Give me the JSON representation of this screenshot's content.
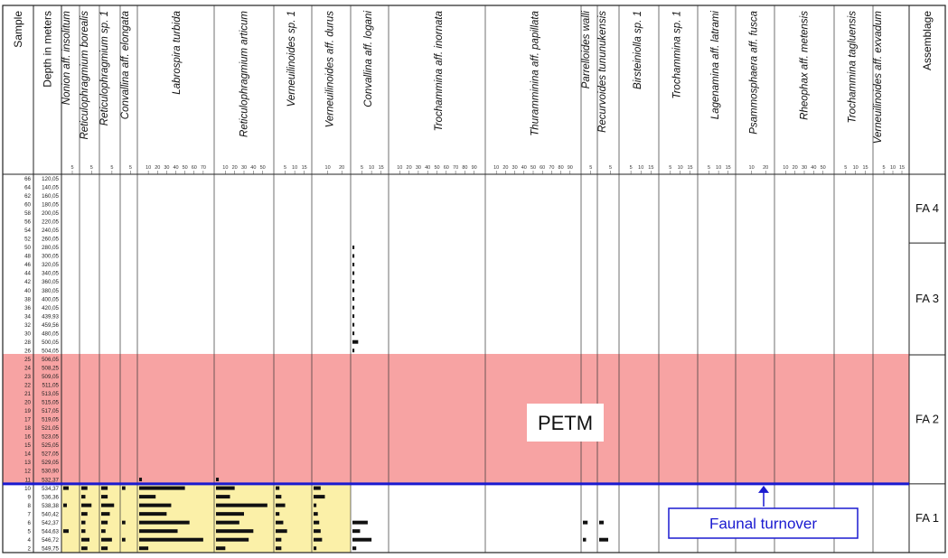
{
  "chart_data": {
    "type": "bar",
    "orientation": "horizontal",
    "grid": false,
    "headers": {
      "sample": "Sample",
      "depth": "Depth in meters",
      "assemblage": "Assemblage"
    },
    "samples": [
      "66",
      "64",
      "62",
      "60",
      "58",
      "56",
      "54",
      "52",
      "50",
      "48",
      "46",
      "44",
      "42",
      "40",
      "38",
      "36",
      "34",
      "32",
      "30",
      "28",
      "26",
      "25",
      "24",
      "23",
      "22",
      "21",
      "20",
      "19",
      "17",
      "18",
      "16",
      "15",
      "14",
      "13",
      "12",
      "11",
      "10",
      "9",
      "8",
      "7",
      "6",
      "5",
      "4",
      "2"
    ],
    "depths": [
      "120,05",
      "140,05",
      "160,05",
      "180,05",
      "200,05",
      "220,05",
      "240,05",
      "260,05",
      "280,05",
      "300,05",
      "320,05",
      "340,05",
      "360,05",
      "380,05",
      "400,05",
      "420,05",
      "439,93",
      "459,56",
      "480,05",
      "500,05",
      "504,05",
      "506,05",
      "508,25",
      "509,05",
      "511,05",
      "513,05",
      "515,05",
      "517,05",
      "519,05",
      "521,05",
      "523,05",
      "525,05",
      "527,05",
      "529,05",
      "530,90",
      "532,37",
      "534,37",
      "536,36",
      "538,38",
      "540,42",
      "542,37",
      "544,63",
      "546,72",
      "549,75"
    ],
    "taxa": [
      {
        "name": "Nonion aff. insolitum",
        "ticks": [
          "5"
        ],
        "max": 8,
        "values": [
          0,
          0,
          0,
          0,
          0,
          0,
          0,
          0,
          0,
          0,
          0,
          0,
          0,
          0,
          0,
          0,
          0,
          0,
          0,
          0,
          0,
          0,
          0,
          0,
          0,
          0,
          0,
          0,
          0,
          0,
          0,
          0,
          0,
          0,
          0,
          0,
          3,
          0,
          2,
          0,
          0,
          3,
          0,
          0
        ]
      },
      {
        "name": "Reticulophragmium borealis",
        "ticks": [
          "5"
        ],
        "max": 8,
        "values": [
          0,
          0,
          0,
          0,
          0,
          0,
          0,
          0,
          0,
          0,
          0,
          0,
          0,
          0,
          0,
          0,
          0,
          0,
          0,
          0,
          0,
          0,
          0,
          0,
          0,
          0,
          0,
          0,
          0,
          0,
          0,
          0,
          0,
          0,
          0,
          0,
          3,
          2,
          5,
          3,
          2,
          2,
          4,
          3
        ]
      },
      {
        "name": "Reticulophragmium sp. 1",
        "ticks": [
          "5"
        ],
        "max": 8,
        "values": [
          0,
          0,
          0,
          0,
          0,
          0,
          0,
          0,
          0,
          0,
          0,
          0,
          0,
          0,
          0,
          0,
          0,
          0,
          0,
          0,
          0,
          0,
          0,
          0,
          0,
          0,
          0,
          0,
          0,
          0,
          0,
          0,
          0,
          0,
          0,
          0,
          3,
          3,
          6,
          4,
          3,
          2,
          5,
          3
        ]
      },
      {
        "name": "Convallina aff. elongata",
        "ticks": [
          "5"
        ],
        "max": 8,
        "values": [
          0,
          0,
          0,
          0,
          0,
          0,
          0,
          0,
          0,
          0,
          0,
          0,
          0,
          0,
          0,
          0,
          0,
          0,
          0,
          0,
          0,
          0,
          0,
          0,
          0,
          0,
          0,
          0,
          0,
          0,
          0,
          0,
          0,
          0,
          0,
          0,
          2,
          0,
          0,
          0,
          2,
          0,
          2,
          0
        ]
      },
      {
        "name": "Labrospira turbida",
        "ticks": [
          "10",
          "20",
          "30",
          "40",
          "50",
          "60",
          "70"
        ],
        "max": 80,
        "values": [
          0,
          0,
          0,
          0,
          0,
          0,
          0,
          0,
          0,
          0,
          0,
          0,
          0,
          0,
          0,
          0,
          0,
          0,
          0,
          0,
          0,
          0,
          0,
          0,
          0,
          0,
          0,
          0,
          0,
          0,
          0,
          0,
          0,
          0,
          0,
          3,
          50,
          18,
          35,
          30,
          55,
          42,
          70,
          10
        ]
      },
      {
        "name": "Reticulophragmium articum",
        "ticks": [
          "10",
          "20",
          "30",
          "40",
          "50"
        ],
        "max": 60,
        "values": [
          0,
          0,
          0,
          0,
          0,
          0,
          0,
          0,
          0,
          0,
          0,
          0,
          0,
          0,
          0,
          0,
          0,
          0,
          0,
          0,
          0,
          0,
          0,
          0,
          0,
          0,
          0,
          0,
          0,
          0,
          0,
          0,
          0,
          0,
          0,
          3,
          20,
          15,
          55,
          30,
          25,
          40,
          35,
          10
        ]
      },
      {
        "name": "Verneuilinoides sp. 1",
        "ticks": [
          "5",
          "10",
          "15"
        ],
        "max": 18,
        "values": [
          0,
          0,
          0,
          0,
          0,
          0,
          0,
          0,
          0,
          0,
          0,
          0,
          0,
          0,
          0,
          0,
          0,
          0,
          0,
          0,
          0,
          0,
          0,
          0,
          0,
          0,
          0,
          0,
          0,
          0,
          0,
          0,
          0,
          0,
          0,
          0,
          2,
          3,
          5,
          2,
          4,
          6,
          3,
          3
        ]
      },
      {
        "name": "Verneuilinoides aff. durus",
        "ticks": [
          "10",
          "20"
        ],
        "max": 25,
        "values": [
          0,
          0,
          0,
          0,
          0,
          0,
          0,
          0,
          0,
          0,
          0,
          0,
          0,
          0,
          0,
          0,
          0,
          0,
          0,
          0,
          0,
          0,
          0,
          0,
          0,
          0,
          0,
          0,
          0,
          0,
          0,
          0,
          0,
          0,
          0,
          0,
          5,
          8,
          2,
          3,
          4,
          5,
          6,
          2
        ]
      },
      {
        "name": "Convallina aff. logani",
        "ticks": [
          "5",
          "10",
          "15"
        ],
        "max": 18,
        "values": [
          0,
          0,
          0,
          0,
          0,
          0,
          0,
          0,
          1,
          1,
          1,
          1,
          1,
          1,
          1,
          1,
          1,
          1,
          1,
          3,
          1,
          0,
          0,
          0,
          0,
          0,
          0,
          0,
          0,
          0,
          0,
          0,
          0,
          0,
          0,
          0,
          0,
          0,
          0,
          0,
          8,
          4,
          10,
          2
        ]
      },
      {
        "name": "Trochammina aff. inornata",
        "ticks": [
          "10",
          "20",
          "30",
          "40",
          "50",
          "60",
          "70",
          "80",
          "90"
        ],
        "max": 100,
        "values": [
          0,
          0,
          0,
          0,
          0,
          0,
          0,
          0,
          0,
          0,
          0,
          0,
          0,
          0,
          0,
          0,
          0,
          0,
          0,
          0,
          0,
          0,
          0,
          0,
          0,
          0,
          0,
          0,
          0,
          0,
          0,
          0,
          0,
          0,
          0,
          0,
          0,
          0,
          0,
          0,
          0,
          0,
          0,
          0
        ]
      },
      {
        "name": "Thuramminina aff. papillata",
        "ticks": [
          "10",
          "20",
          "30",
          "40",
          "50",
          "60",
          "70",
          "80",
          "90"
        ],
        "max": 100,
        "values": [
          0,
          0,
          0,
          0,
          0,
          0,
          0,
          0,
          0,
          0,
          0,
          0,
          0,
          0,
          0,
          0,
          0,
          0,
          0,
          0,
          0,
          0,
          0,
          0,
          0,
          0,
          0,
          0,
          0,
          0,
          0,
          0,
          0,
          0,
          0,
          0,
          0,
          0,
          0,
          0,
          0,
          0,
          0,
          0
        ]
      },
      {
        "name": "Parrelloides walli",
        "ticks": [
          "5"
        ],
        "max": 8,
        "values": [
          0,
          0,
          0,
          0,
          0,
          0,
          0,
          0,
          0,
          0,
          0,
          0,
          0,
          0,
          0,
          0,
          0,
          0,
          0,
          0,
          0,
          0,
          0,
          0,
          0,
          0,
          0,
          0,
          0,
          0,
          0,
          0,
          0,
          0,
          0,
          0,
          0,
          0,
          0,
          0,
          3,
          0,
          2,
          0
        ]
      },
      {
        "name": "Recurvoides tununukensis",
        "ticks": [
          "5"
        ],
        "max": 8,
        "values": [
          0,
          0,
          0,
          0,
          0,
          0,
          0,
          0,
          0,
          0,
          0,
          0,
          0,
          0,
          0,
          0,
          0,
          0,
          0,
          0,
          0,
          0,
          0,
          0,
          0,
          0,
          0,
          0,
          0,
          0,
          0,
          0,
          0,
          0,
          0,
          0,
          0,
          0,
          0,
          0,
          2,
          0,
          4,
          0
        ]
      },
      {
        "name": "Birsteiniolla sp. 1",
        "ticks": [
          "5",
          "10",
          "15"
        ],
        "max": 18,
        "values": [
          0,
          0,
          0,
          0,
          0,
          0,
          0,
          0,
          0,
          0,
          0,
          0,
          0,
          0,
          0,
          0,
          0,
          0,
          0,
          0,
          0,
          0,
          0,
          0,
          0,
          0,
          0,
          0,
          0,
          0,
          0,
          0,
          0,
          0,
          0,
          0,
          0,
          0,
          0,
          0,
          0,
          0,
          0,
          0
        ]
      },
      {
        "name": "Trochammina sp. 1",
        "ticks": [
          "5",
          "10",
          "15"
        ],
        "max": 18,
        "values": [
          0,
          0,
          0,
          0,
          0,
          0,
          0,
          0,
          0,
          0,
          0,
          0,
          0,
          0,
          0,
          0,
          0,
          0,
          0,
          0,
          0,
          0,
          0,
          0,
          0,
          0,
          0,
          0,
          0,
          0,
          0,
          0,
          0,
          0,
          0,
          0,
          0,
          0,
          0,
          0,
          0,
          0,
          0,
          0
        ]
      },
      {
        "name": "Lagenamina aff. latrami",
        "ticks": [
          "5",
          "10",
          "15"
        ],
        "max": 18,
        "values": [
          0,
          0,
          0,
          0,
          0,
          0,
          0,
          0,
          0,
          0,
          0,
          0,
          0,
          0,
          0,
          0,
          0,
          0,
          0,
          0,
          0,
          0,
          0,
          0,
          0,
          0,
          0,
          0,
          0,
          0,
          0,
          0,
          0,
          0,
          0,
          0,
          0,
          0,
          0,
          0,
          0,
          0,
          0,
          0
        ]
      },
      {
        "name": "Psammosphaera aff. fusca",
        "ticks": [
          "10",
          "20"
        ],
        "max": 25,
        "values": [
          0,
          0,
          0,
          0,
          0,
          0,
          0,
          0,
          0,
          0,
          0,
          0,
          0,
          0,
          0,
          0,
          0,
          0,
          0,
          0,
          0,
          0,
          0,
          0,
          0,
          0,
          0,
          0,
          0,
          0,
          0,
          0,
          0,
          0,
          0,
          0,
          0,
          0,
          0,
          0,
          0,
          0,
          0,
          0
        ]
      },
      {
        "name": "Rheophax aff. metensis",
        "ticks": [
          "10",
          "20",
          "30",
          "40",
          "50"
        ],
        "max": 60,
        "values": [
          0,
          0,
          0,
          0,
          0,
          0,
          0,
          0,
          0,
          0,
          0,
          0,
          0,
          0,
          0,
          0,
          0,
          0,
          0,
          0,
          0,
          0,
          0,
          0,
          0,
          0,
          0,
          0,
          0,
          0,
          0,
          0,
          0,
          0,
          0,
          0,
          0,
          0,
          0,
          0,
          0,
          0,
          0,
          0
        ]
      },
      {
        "name": "Trochammina tagluensis",
        "ticks": [
          "5",
          "10",
          "15"
        ],
        "max": 18,
        "values": [
          0,
          0,
          0,
          0,
          0,
          0,
          0,
          0,
          0,
          0,
          0,
          0,
          0,
          0,
          0,
          0,
          0,
          0,
          0,
          0,
          0,
          0,
          0,
          0,
          0,
          0,
          0,
          0,
          0,
          0,
          0,
          0,
          0,
          0,
          0,
          0,
          0,
          0,
          0,
          0,
          0,
          0,
          0,
          0
        ]
      },
      {
        "name": "Verneuilinoides aff. exvadum",
        "ticks": [
          "5",
          "10",
          "15"
        ],
        "max": 18,
        "values": [
          0,
          0,
          0,
          0,
          0,
          0,
          0,
          0,
          0,
          0,
          0,
          0,
          0,
          0,
          0,
          0,
          0,
          0,
          0,
          0,
          0,
          0,
          0,
          0,
          0,
          0,
          0,
          0,
          0,
          0,
          0,
          0,
          0,
          0,
          0,
          0,
          0,
          0,
          0,
          0,
          0,
          0,
          0,
          0
        ]
      }
    ],
    "assemblages": [
      {
        "label": "FA 4",
        "from_sample": "66",
        "to_sample": "52"
      },
      {
        "label": "FA 3",
        "from_sample": "50",
        "to_sample": "26"
      },
      {
        "label": "FA 2",
        "from_sample": "25",
        "to_sample": "11"
      },
      {
        "label": "FA 1",
        "from_sample": "10",
        "to_sample": "2"
      }
    ],
    "annotations": {
      "petm": {
        "label": "PETM",
        "color": "#f7a3a3",
        "from_sample": "25",
        "to_sample": "11"
      },
      "pre_petm": {
        "color": "#fbf0a8",
        "from_sample": "10",
        "to_sample": "2",
        "first_taxon": "Nonion aff. insolitum",
        "last_taxon": "Verneuilinoides aff. durus"
      },
      "turnover": {
        "label": "Faunal turnover",
        "color": "#1a1ad0",
        "between_samples": [
          "11",
          "10"
        ]
      }
    }
  }
}
